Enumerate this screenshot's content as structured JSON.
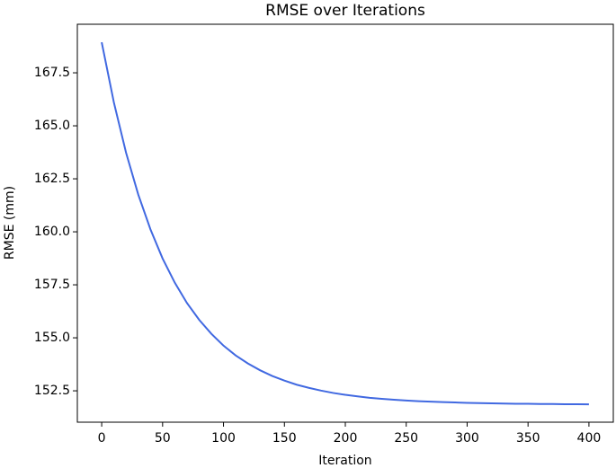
{
  "chart_data": {
    "type": "line",
    "title": "RMSE over Iterations",
    "x_label": "Iteration",
    "y_label": "RMSE (mm)",
    "x": [
      0,
      10,
      20,
      30,
      40,
      50,
      60,
      70,
      80,
      90,
      100,
      110,
      120,
      130,
      140,
      150,
      160,
      170,
      180,
      190,
      200,
      210,
      220,
      230,
      240,
      250,
      260,
      270,
      280,
      290,
      300,
      310,
      320,
      330,
      340,
      350,
      360,
      370,
      380,
      390,
      400
    ],
    "values": [
      168.94,
      166.1,
      163.73,
      161.76,
      160.12,
      158.74,
      157.6,
      156.64,
      155.85,
      155.19,
      154.63,
      154.17,
      153.79,
      153.47,
      153.2,
      152.98,
      152.79,
      152.64,
      152.51,
      152.4,
      152.31,
      152.24,
      152.17,
      152.12,
      152.08,
      152.04,
      152.01,
      151.99,
      151.97,
      151.95,
      151.93,
      151.92,
      151.91,
      151.9,
      151.89,
      151.89,
      151.88,
      151.88,
      151.87,
      151.87,
      151.86
    ],
    "color": "#4169e1",
    "xlim": [
      -20,
      420
    ],
    "xticks": [
      0,
      50,
      100,
      150,
      200,
      250,
      300,
      350,
      400
    ],
    "ylim": [
      151.02,
      169.79
    ],
    "yticks": [
      152.5,
      {
        "value": 155,
        "label": "155.0"
      },
      157.5,
      {
        "value": 160,
        "label": "160.0"
      },
      162.5,
      {
        "value": 165,
        "label": "165.0"
      },
      167.5
    ],
    "grid": false
  }
}
